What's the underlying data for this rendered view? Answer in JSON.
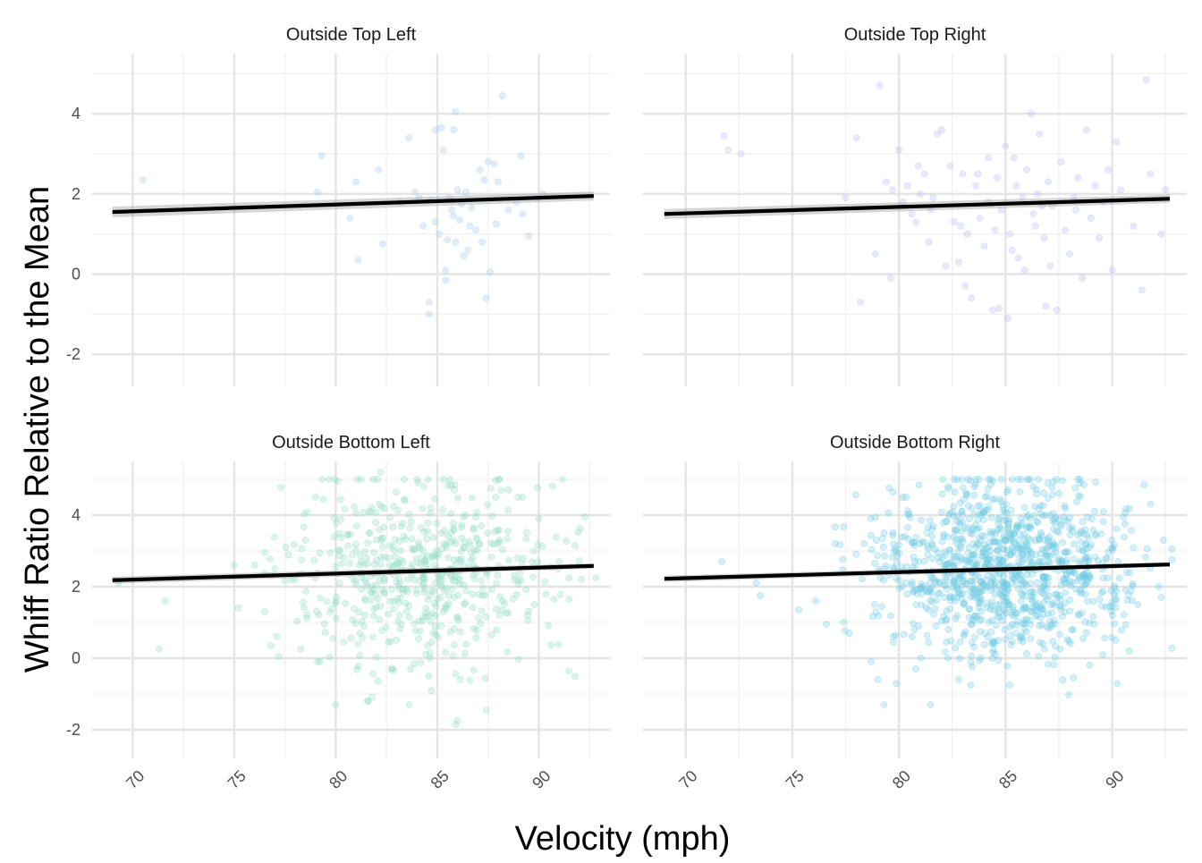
{
  "chart_data": {
    "type": "scatter",
    "xlabel": "Velocity (mph)",
    "ylabel": "Whiff Ratio Relative to the Mean",
    "xlim": [
      68,
      93.5
    ],
    "ylim": [
      -2.8,
      5.5
    ],
    "x_ticks": [
      70,
      75,
      80,
      85,
      90
    ],
    "y_ticks": [
      -2,
      0,
      2,
      4
    ],
    "grid": true,
    "legend": "none",
    "panels": [
      {
        "title": "Outside Top Left",
        "color": "#a9cdf0",
        "alpha": 0.35,
        "fit_line": {
          "x": [
            69,
            92.7
          ],
          "y": [
            1.55,
            1.95
          ],
          "band": 0.09
        },
        "points": [
          [
            70.5,
            2.35
          ],
          [
            79.3,
            2.95
          ],
          [
            79.1,
            2.05
          ],
          [
            81.0,
            2.3
          ],
          [
            82.1,
            2.6
          ],
          [
            80.7,
            1.4
          ],
          [
            81.1,
            0.35
          ],
          [
            82.3,
            0.75
          ],
          [
            83.6,
            3.4
          ],
          [
            84.3,
            1.2
          ],
          [
            84.6,
            -0.7
          ],
          [
            84.6,
            -1.0
          ],
          [
            84.9,
            3.6
          ],
          [
            85.2,
            3.65
          ],
          [
            85.3,
            3.1
          ],
          [
            85.8,
            3.6
          ],
          [
            85.9,
            4.05
          ],
          [
            87.1,
            2.6
          ],
          [
            87.3,
            2.35
          ],
          [
            87.4,
            -0.6
          ],
          [
            88.2,
            4.45
          ],
          [
            87.5,
            2.8
          ],
          [
            87.8,
            2.75
          ],
          [
            89.1,
            2.95
          ],
          [
            85.4,
            0.1
          ],
          [
            85.4,
            -0.15
          ],
          [
            85.5,
            0.85
          ],
          [
            85.7,
            1.6
          ],
          [
            86.2,
            1.75
          ],
          [
            86.0,
            2.1
          ],
          [
            85.1,
            1.0
          ],
          [
            85.6,
            1.9
          ],
          [
            86.9,
            1.1
          ],
          [
            86.5,
            0.6
          ],
          [
            87.6,
            0.05
          ],
          [
            88.5,
            1.6
          ],
          [
            89.2,
            1.5
          ],
          [
            89.9,
            1.9
          ],
          [
            89.5,
            0.95
          ],
          [
            86.3,
            0.45
          ],
          [
            84.1,
            1.9
          ],
          [
            83.2,
            1.8
          ],
          [
            86.7,
            1.65
          ],
          [
            85.9,
            0.8
          ],
          [
            87.9,
            1.25
          ],
          [
            86.4,
            2.05
          ],
          [
            84.9,
            1.3
          ],
          [
            88.9,
            1.8
          ],
          [
            86.1,
            1.35
          ],
          [
            84.7,
            1.85
          ],
          [
            85.8,
            1.45
          ],
          [
            90.2,
            2.0
          ],
          [
            88.0,
            2.3
          ],
          [
            86.6,
            1.2
          ],
          [
            83.9,
            2.05
          ],
          [
            87.2,
            0.8
          ]
        ]
      },
      {
        "title": "Outside Top Right",
        "color": "#bfbff5",
        "alpha": 0.35,
        "fit_line": {
          "x": [
            69,
            92.7
          ],
          "y": [
            1.5,
            1.88
          ],
          "band": 0.08
        },
        "points": [
          [
            71.8,
            3.45
          ],
          [
            72.0,
            3.1
          ],
          [
            72.6,
            3.0
          ],
          [
            78.0,
            3.4
          ],
          [
            77.5,
            1.9
          ],
          [
            78.2,
            -0.7
          ],
          [
            78.9,
            0.5
          ],
          [
            79.1,
            4.7
          ],
          [
            79.4,
            2.3
          ],
          [
            79.6,
            -0.1
          ],
          [
            79.7,
            2.1
          ],
          [
            80.0,
            3.1
          ],
          [
            80.2,
            1.8
          ],
          [
            80.4,
            2.2
          ],
          [
            80.6,
            1.5
          ],
          [
            80.8,
            1.3
          ],
          [
            81.0,
            2.0
          ],
          [
            81.2,
            2.5
          ],
          [
            81.4,
            0.8
          ],
          [
            81.6,
            1.9
          ],
          [
            81.8,
            3.5
          ],
          [
            82.0,
            3.6
          ],
          [
            82.2,
            0.2
          ],
          [
            82.4,
            2.7
          ],
          [
            82.6,
            1.3
          ],
          [
            82.8,
            0.3
          ],
          [
            83.0,
            2.5
          ],
          [
            83.2,
            1.0
          ],
          [
            83.4,
            -0.6
          ],
          [
            83.6,
            2.2
          ],
          [
            83.8,
            1.4
          ],
          [
            84.0,
            0.7
          ],
          [
            84.2,
            1.8
          ],
          [
            84.4,
            -0.9
          ],
          [
            84.6,
            2.4
          ],
          [
            84.8,
            1.6
          ],
          [
            85.0,
            3.2
          ],
          [
            85.2,
            1.0
          ],
          [
            85.4,
            2.9
          ],
          [
            85.6,
            0.4
          ],
          [
            85.8,
            1.9
          ],
          [
            86.0,
            2.6
          ],
          [
            86.2,
            4.0
          ],
          [
            86.4,
            1.2
          ],
          [
            86.6,
            3.5
          ],
          [
            86.8,
            0.9
          ],
          [
            87.0,
            2.3
          ],
          [
            87.2,
            1.7
          ],
          [
            87.4,
            -0.9
          ],
          [
            87.6,
            2.8
          ],
          [
            87.8,
            1.1
          ],
          [
            88.0,
            0.5
          ],
          [
            88.2,
            1.9
          ],
          [
            88.4,
            2.4
          ],
          [
            88.6,
            -0.1
          ],
          [
            88.8,
            3.6
          ],
          [
            89.0,
            1.4
          ],
          [
            89.2,
            2.2
          ],
          [
            89.4,
            0.9
          ],
          [
            89.6,
            1.8
          ],
          [
            89.8,
            2.6
          ],
          [
            90.0,
            0.1
          ],
          [
            90.2,
            3.3
          ],
          [
            90.4,
            2.1
          ],
          [
            91.0,
            1.2
          ],
          [
            91.4,
            -0.4
          ],
          [
            91.6,
            4.85
          ],
          [
            91.8,
            2.5
          ],
          [
            92.3,
            1.0
          ],
          [
            92.5,
            2.1
          ],
          [
            85.1,
            -1.1
          ],
          [
            84.7,
            -0.85
          ],
          [
            86.9,
            -0.8
          ],
          [
            83.1,
            -0.3
          ],
          [
            85.9,
            0.1
          ],
          [
            84.2,
            2.9
          ],
          [
            82.9,
            1.2
          ],
          [
            86.3,
            1.5
          ],
          [
            85.5,
            2.2
          ],
          [
            84.5,
            1.1
          ],
          [
            87.1,
            0.2
          ],
          [
            86.7,
            1.7
          ],
          [
            83.7,
            2.5
          ],
          [
            81.5,
            1.6
          ],
          [
            88.3,
            1.6
          ],
          [
            80.9,
            2.7
          ],
          [
            85.3,
            0.6
          ],
          [
            86.5,
            2.0
          ]
        ]
      },
      {
        "title": "Outside Bottom Left",
        "color": "#8fdcc6",
        "alpha": 0.3,
        "fit_line": {
          "x": [
            69,
            92.7
          ],
          "y": [
            2.18,
            2.58
          ],
          "band": 0.05
        },
        "points_generated": {
          "n": 560,
          "x_mean": 84.3,
          "x_sd": 3.1,
          "y_mean": 2.35,
          "y_sd": 1.3
        },
        "points": [
          [
            69.3,
            2.1
          ],
          [
            71.6,
            1.6
          ],
          [
            71.3,
            0.25
          ],
          [
            75.0,
            2.6
          ],
          [
            75.2,
            1.4
          ],
          [
            76.0,
            2.6
          ],
          [
            76.5,
            2.95
          ],
          [
            76.8,
            0.35
          ],
          [
            77.2,
            0.05
          ],
          [
            77.0,
            2.5
          ],
          [
            78.0,
            2.2
          ],
          [
            78.5,
            3.3
          ],
          [
            79.1,
            -0.1
          ],
          [
            86.0,
            -1.75
          ],
          [
            85.9,
            -1.85
          ],
          [
            87.4,
            -1.45
          ],
          [
            82.2,
            5.2
          ],
          [
            80.1,
            4.95
          ],
          [
            88.5,
            4.7
          ],
          [
            89.2,
            4.5
          ],
          [
            81.6,
            -1.2
          ],
          [
            90.0,
            3.9
          ],
          [
            91.5,
            1.65
          ],
          [
            92.1,
            2.2
          ],
          [
            91.0,
            2.7
          ],
          [
            90.6,
            2.55
          ]
        ]
      },
      {
        "title": "Outside Bottom Right",
        "color": "#6ccbe3",
        "alpha": 0.3,
        "fit_line": {
          "x": [
            69,
            92.7
          ],
          "y": [
            2.22,
            2.62
          ],
          "band": 0.04
        },
        "points_generated": {
          "n": 1100,
          "x_mean": 85.1,
          "x_sd": 2.9,
          "y_mean": 2.45,
          "y_sd": 1.2
        },
        "points": [
          [
            71.7,
            2.7
          ],
          [
            73.3,
            2.1
          ],
          [
            73.5,
            1.75
          ],
          [
            75.3,
            1.35
          ],
          [
            76.1,
            1.6
          ],
          [
            76.6,
            0.95
          ],
          [
            77.0,
            3.2
          ],
          [
            78.7,
            -0.1
          ],
          [
            79.3,
            -1.3
          ],
          [
            79.0,
            -0.6
          ],
          [
            91.5,
            4.85
          ],
          [
            92.4,
            3.3
          ],
          [
            92.8,
            3.05
          ],
          [
            92.3,
            1.7
          ],
          [
            91.2,
            1.5
          ],
          [
            90.8,
            0.2
          ],
          [
            82.8,
            -0.6
          ],
          [
            85.2,
            -0.75
          ],
          [
            88.5,
            4.9
          ],
          [
            86.3,
            4.8
          ]
        ]
      }
    ]
  }
}
